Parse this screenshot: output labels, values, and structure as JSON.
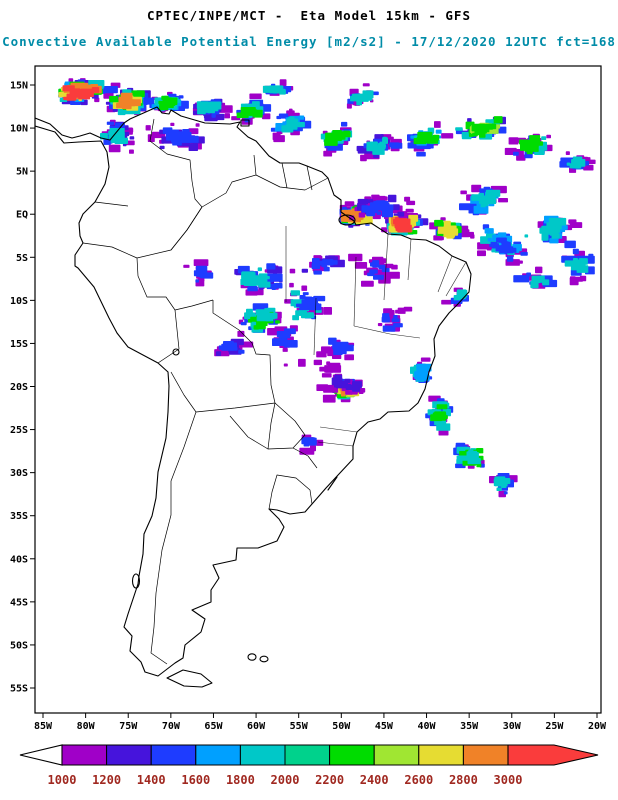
{
  "header": {
    "line1": "CPTEC/INPE/MCT -  Eta Model 15km - GFS",
    "line2": "Convective Available Potential Energy [m2/s2] - 17/12/2020 12UTC fct=168"
  },
  "colors": {
    "subtitle": "#008CA8",
    "colorbar_label": "#A02820",
    "axis_label": "#000000"
  },
  "map": {
    "extent": {
      "lon_west": 85,
      "lon_east": 20,
      "lat_north": 15,
      "lat_south": -55
    },
    "lat_labels": [
      "15N",
      "10N",
      "5N",
      "EQ",
      "5S",
      "10S",
      "15S",
      "20S",
      "25S",
      "30S",
      "35S",
      "40S",
      "45S",
      "50S",
      "55S"
    ],
    "lon_labels": [
      "85W",
      "80W",
      "75W",
      "70W",
      "65W",
      "60W",
      "55W",
      "50W",
      "45W",
      "40W",
      "35W",
      "30W",
      "25W",
      "20W"
    ]
  },
  "colorbar": {
    "labels": [
      "1000",
      "1200",
      "1400",
      "1600",
      "1800",
      "2000",
      "2200",
      "2400",
      "2600",
      "2800",
      "3000"
    ],
    "box_colors": [
      "#A000C8",
      "#4614DC",
      "#1E3CFF",
      "#00A0FF",
      "#00C8C8",
      "#00D28C",
      "#00DC00",
      "#A0E632",
      "#E6DC32",
      "#F08228"
    ],
    "under_arrow_color": "#FFFFFF",
    "over_arrow_color": "#FA3C3C"
  },
  "palette": [
    "#A000C8",
    "#4614DC",
    "#1E3CFF",
    "#00A0FF",
    "#00C8C8",
    "#00D28C",
    "#00DC00",
    "#A0E632",
    "#E6DC32",
    "#F08228",
    "#FA3C3C"
  ],
  "chart_data": {
    "type": "heatmap",
    "field": "Convective Available Potential Energy",
    "units": "m2/s2",
    "scale_min": 1000,
    "scale_max": 3000,
    "scale_step": 200,
    "clusters": [
      {
        "lon": 80.5,
        "lat": 14.2,
        "sx": 4.5,
        "sy": 1.7,
        "n": 120,
        "rot": -5,
        "colors": [
          0,
          1,
          2,
          3,
          4,
          6,
          8,
          9,
          10
        ]
      },
      {
        "lon": 75.0,
        "lat": 13.0,
        "sx": 3.2,
        "sy": 1.9,
        "n": 85,
        "rot": -10,
        "colors": [
          0,
          1,
          2,
          4,
          6,
          8,
          9
        ]
      },
      {
        "lon": 70.5,
        "lat": 12.8,
        "sx": 3.0,
        "sy": 1.5,
        "n": 55,
        "rot": -8,
        "colors": [
          0,
          2,
          3,
          4,
          6
        ]
      },
      {
        "lon": 65.5,
        "lat": 12.2,
        "sx": 2.8,
        "sy": 1.5,
        "n": 40,
        "rot": 0,
        "colors": [
          0,
          1,
          2,
          4
        ]
      },
      {
        "lon": 76.5,
        "lat": 9.2,
        "sx": 3.0,
        "sy": 2.2,
        "n": 40,
        "rot": 0,
        "colors": [
          0,
          1,
          2,
          4
        ]
      },
      {
        "lon": 69.0,
        "lat": 9.0,
        "sx": 4.5,
        "sy": 2.0,
        "n": 40,
        "rot": 0,
        "colors": [
          0,
          1,
          2
        ]
      },
      {
        "lon": 60.5,
        "lat": 12.0,
        "sx": 2.6,
        "sy": 1.6,
        "n": 35,
        "rot": -20,
        "colors": [
          0,
          2,
          4,
          6
        ]
      },
      {
        "lon": 57.5,
        "lat": 14.3,
        "sx": 2.2,
        "sy": 1.2,
        "n": 20,
        "rot": -15,
        "colors": [
          0,
          2,
          4
        ]
      },
      {
        "lon": 56.0,
        "lat": 10.5,
        "sx": 3.0,
        "sy": 1.8,
        "n": 45,
        "rot": -25,
        "colors": [
          0,
          2,
          3,
          4
        ]
      },
      {
        "lon": 50.5,
        "lat": 8.8,
        "sx": 3.0,
        "sy": 1.6,
        "n": 45,
        "rot": -30,
        "colors": [
          0,
          2,
          4,
          6
        ]
      },
      {
        "lon": 47.5,
        "lat": 13.5,
        "sx": 2.5,
        "sy": 1.4,
        "n": 25,
        "rot": -25,
        "colors": [
          0,
          2,
          4
        ]
      },
      {
        "lon": 45.5,
        "lat": 8.0,
        "sx": 3.2,
        "sy": 1.6,
        "n": 45,
        "rot": -25,
        "colors": [
          0,
          1,
          2,
          4
        ]
      },
      {
        "lon": 40.0,
        "lat": 8.6,
        "sx": 3.5,
        "sy": 1.8,
        "n": 50,
        "rot": -15,
        "colors": [
          0,
          2,
          3,
          4,
          6
        ]
      },
      {
        "lon": 33.5,
        "lat": 9.8,
        "sx": 4.0,
        "sy": 1.7,
        "n": 70,
        "rot": -12,
        "colors": [
          1,
          2,
          4,
          6,
          7,
          6
        ]
      },
      {
        "lon": 27.5,
        "lat": 8.0,
        "sx": 3.3,
        "sy": 1.8,
        "n": 45,
        "rot": -18,
        "colors": [
          0,
          2,
          4,
          6
        ]
      },
      {
        "lon": 22.5,
        "lat": 6.0,
        "sx": 2.2,
        "sy": 1.8,
        "n": 25,
        "rot": -20,
        "colors": [
          0,
          2,
          4
        ]
      },
      {
        "lon": 48.5,
        "lat": -0.2,
        "sx": 2.4,
        "sy": 1.7,
        "n": 70,
        "rot": 10,
        "colors": [
          0,
          1,
          2,
          4,
          6,
          8,
          9
        ]
      },
      {
        "lon": 42.8,
        "lat": -1.2,
        "sx": 2.6,
        "sy": 1.6,
        "n": 75,
        "rot": 5,
        "colors": [
          0,
          1,
          2,
          4,
          6,
          8,
          9,
          10
        ]
      },
      {
        "lon": 45.5,
        "lat": 0.8,
        "sx": 5.0,
        "sy": 2.2,
        "n": 55,
        "rot": 0,
        "colors": [
          0,
          0,
          1,
          2
        ]
      },
      {
        "lon": 37.5,
        "lat": -1.8,
        "sx": 2.2,
        "sy": 1.4,
        "n": 45,
        "rot": 10,
        "colors": [
          0,
          2,
          4,
          6,
          8
        ]
      },
      {
        "lon": 33.5,
        "lat": 1.5,
        "sx": 3.5,
        "sy": 1.8,
        "n": 35,
        "rot": -10,
        "colors": [
          0,
          2,
          3,
          4
        ]
      },
      {
        "lon": 31.0,
        "lat": -3.5,
        "sx": 4.5,
        "sy": 2.2,
        "n": 55,
        "rot": 15,
        "colors": [
          0,
          2,
          4,
          3,
          2
        ]
      },
      {
        "lon": 25.0,
        "lat": -2.0,
        "sx": 3.0,
        "sy": 2.4,
        "n": 40,
        "rot": 0,
        "colors": [
          0,
          2,
          3,
          4
        ]
      },
      {
        "lon": 22.0,
        "lat": -6.0,
        "sx": 2.2,
        "sy": 2.2,
        "n": 28,
        "rot": 0,
        "colors": [
          0,
          2,
          4
        ]
      },
      {
        "lon": 27.0,
        "lat": -7.5,
        "sx": 2.5,
        "sy": 1.6,
        "n": 22,
        "rot": 20,
        "colors": [
          0,
          2,
          4
        ]
      },
      {
        "lon": 59.5,
        "lat": -7.5,
        "sx": 4.5,
        "sy": 2.6,
        "n": 55,
        "rot": 0,
        "colors": [
          0,
          1,
          2,
          4
        ]
      },
      {
        "lon": 66.5,
        "lat": -7.0,
        "sx": 2.4,
        "sy": 2.0,
        "n": 16,
        "rot": 0,
        "colors": [
          0,
          2
        ]
      },
      {
        "lon": 59.5,
        "lat": -12.0,
        "sx": 3.6,
        "sy": 2.2,
        "n": 55,
        "rot": 0,
        "colors": [
          0,
          2,
          4,
          6,
          4
        ]
      },
      {
        "lon": 54.0,
        "lat": -10.5,
        "sx": 3.4,
        "sy": 2.6,
        "n": 45,
        "rot": 0,
        "colors": [
          0,
          2,
          4,
          2
        ]
      },
      {
        "lon": 52.5,
        "lat": -5.8,
        "sx": 3.0,
        "sy": 2.0,
        "n": 30,
        "rot": 0,
        "colors": [
          0,
          1,
          2
        ]
      },
      {
        "lon": 46.0,
        "lat": -6.5,
        "sx": 3.0,
        "sy": 2.2,
        "n": 25,
        "rot": 0,
        "colors": [
          0,
          0,
          2
        ]
      },
      {
        "lon": 63.0,
        "lat": -15.3,
        "sx": 2.8,
        "sy": 1.6,
        "n": 22,
        "rot": 0,
        "colors": [
          0,
          1,
          2
        ]
      },
      {
        "lon": 56.5,
        "lat": -14.5,
        "sx": 2.2,
        "sy": 1.8,
        "n": 20,
        "rot": 0,
        "colors": [
          0,
          2
        ]
      },
      {
        "lon": 36.2,
        "lat": -9.8,
        "sx": 1.4,
        "sy": 1.8,
        "n": 14,
        "rot": 30,
        "colors": [
          0,
          2,
          4
        ]
      },
      {
        "lon": 49.3,
        "lat": -20.4,
        "sx": 1.7,
        "sy": 1.2,
        "n": 50,
        "rot": 0,
        "colors": [
          0,
          2,
          4,
          6,
          7,
          8,
          9
        ]
      },
      {
        "lon": 49.8,
        "lat": -19.6,
        "sx": 3.2,
        "sy": 2.0,
        "n": 22,
        "rot": 0,
        "colors": [
          0,
          1
        ]
      },
      {
        "lon": 40.5,
        "lat": -18.5,
        "sx": 1.4,
        "sy": 2.6,
        "n": 30,
        "rot": 8,
        "colors": [
          0,
          2,
          4,
          3
        ]
      },
      {
        "lon": 38.5,
        "lat": -23.5,
        "sx": 1.8,
        "sy": 2.6,
        "n": 38,
        "rot": 22,
        "colors": [
          0,
          2,
          4,
          6
        ]
      },
      {
        "lon": 34.8,
        "lat": -28.0,
        "sx": 2.4,
        "sy": 2.2,
        "n": 45,
        "rot": 30,
        "colors": [
          0,
          2,
          4,
          6,
          4
        ]
      },
      {
        "lon": 31.2,
        "lat": -31.3,
        "sx": 2.0,
        "sy": 1.5,
        "n": 24,
        "rot": 30,
        "colors": [
          0,
          2,
          4
        ]
      },
      {
        "lon": 53.5,
        "lat": -26.5,
        "sx": 1.4,
        "sy": 1.2,
        "n": 10,
        "rot": 0,
        "colors": [
          0,
          2
        ]
      },
      {
        "lon": 50.0,
        "lat": -15.5,
        "sx": 2.2,
        "sy": 1.8,
        "n": 18,
        "rot": 0,
        "colors": [
          0,
          2
        ]
      },
      {
        "lon": 44.0,
        "lat": -12.5,
        "sx": 2.4,
        "sy": 2.0,
        "n": 18,
        "rot": 0,
        "colors": [
          0,
          0,
          2
        ]
      },
      {
        "lon": 52.0,
        "lat": -17.5,
        "sx": 6.0,
        "sy": 3.0,
        "n": 12,
        "rot": 0,
        "colors": [
          0
        ]
      }
    ]
  }
}
